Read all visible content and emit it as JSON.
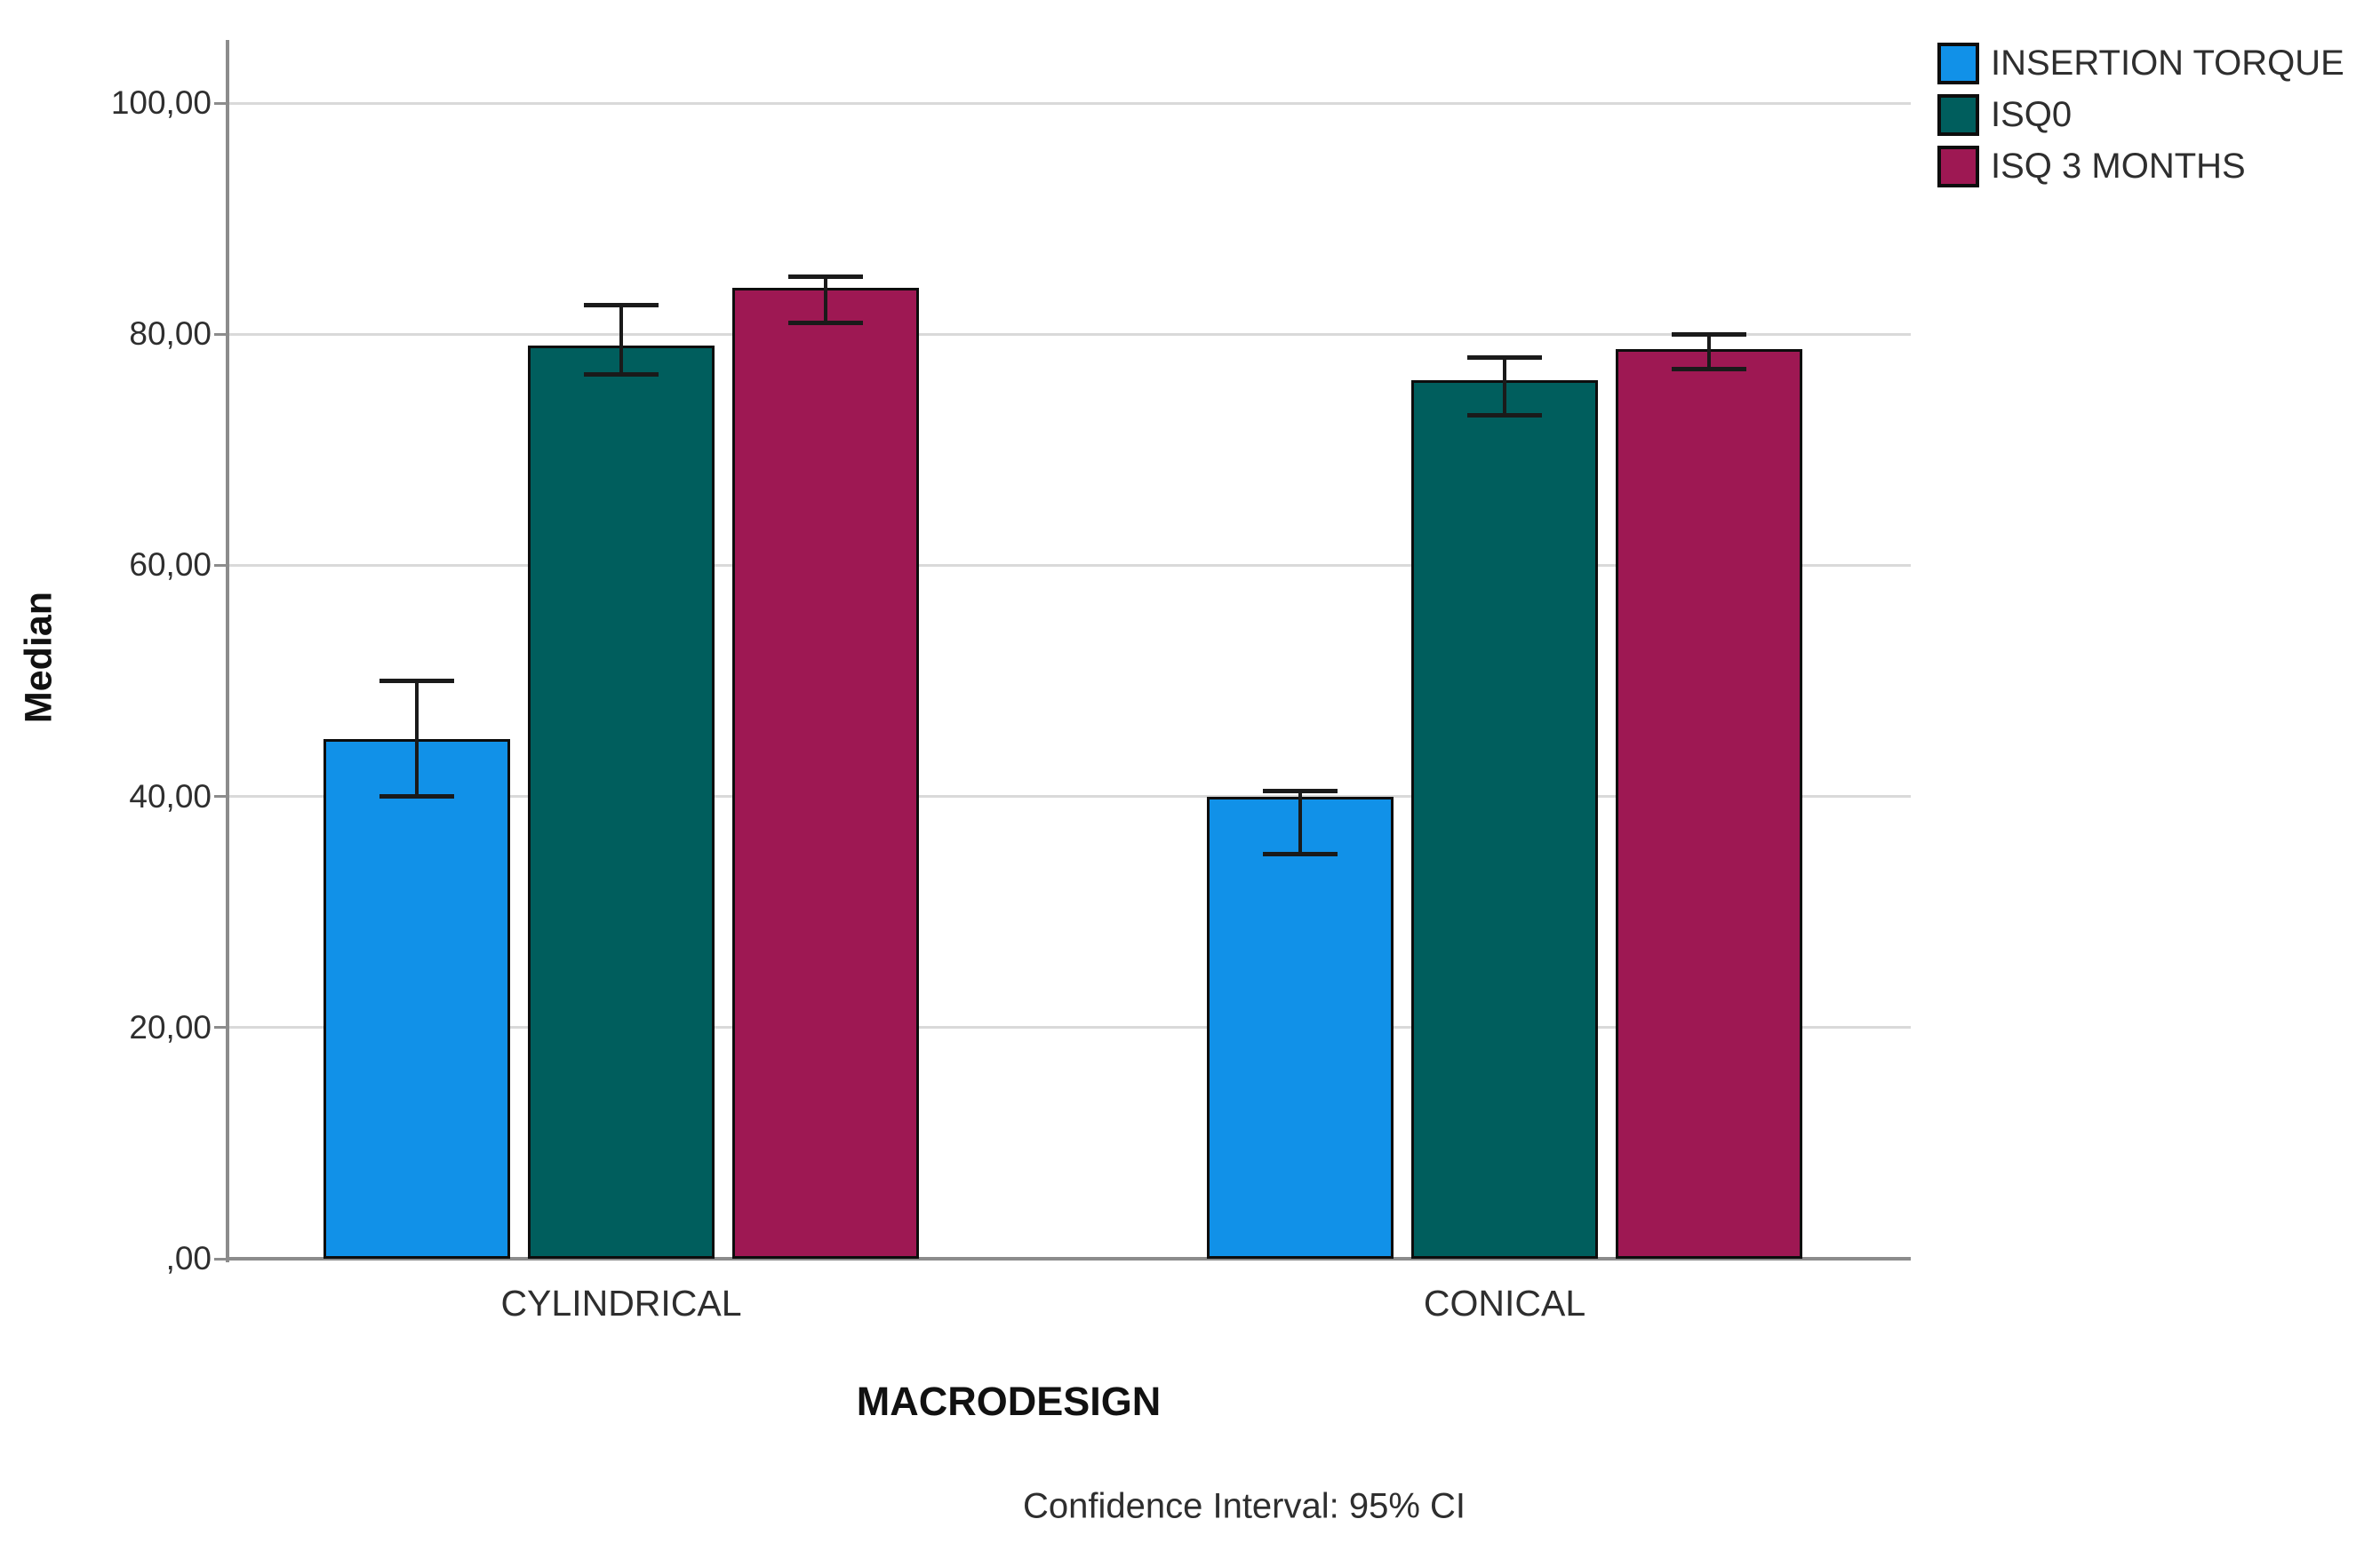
{
  "chart_data": {
    "type": "bar",
    "title": "",
    "categories": [
      "CYLINDRICAL",
      "CONICAL"
    ],
    "series": [
      {
        "name": "INSERTION TORQUE",
        "color": "#1191E8",
        "values": [
          45,
          40
        ],
        "ci_low": [
          40,
          35
        ],
        "ci_high": [
          50,
          40.5
        ]
      },
      {
        "name": "ISQ0",
        "color": "#005E5D",
        "values": [
          79,
          76
        ],
        "ci_low": [
          76.5,
          73
        ],
        "ci_high": [
          82.5,
          78
        ]
      },
      {
        "name": "ISQ 3 MONTHS",
        "color": "#9E1853",
        "values": [
          84,
          78.7
        ],
        "ci_low": [
          81,
          77
        ],
        "ci_high": [
          85,
          80
        ]
      }
    ],
    "xlabel": "MACRODESIGN",
    "ylabel": "Median",
    "ylim": [
      0,
      105
    ],
    "yticks": [
      {
        "value": 0,
        "label": ",00"
      },
      {
        "value": 20,
        "label": "20,00"
      },
      {
        "value": 40,
        "label": "40,00"
      },
      {
        "value": 60,
        "label": "60,00"
      },
      {
        "value": 80,
        "label": "80,00"
      },
      {
        "value": 100,
        "label": "100,00"
      }
    ],
    "grid": "horizontal",
    "legend_position": "top-right",
    "error_bars": "95% CI",
    "caption": "Confidence Interval: 95% CI"
  },
  "colors": {
    "gridline": "#D9D9D9",
    "axis": "#8C8C8C",
    "bar_border": "#0D0D0D",
    "error_bar": "#1A1A1A",
    "text": "#2E2E2E",
    "title": "#111111"
  }
}
